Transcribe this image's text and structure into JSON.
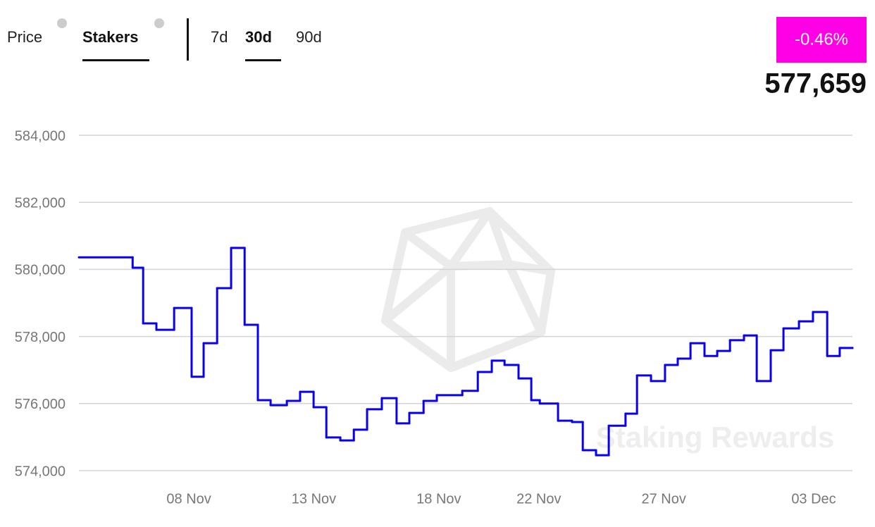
{
  "header": {
    "tabs": [
      "Price",
      "Stakers"
    ],
    "periods": [
      "7d",
      "30d",
      "90d"
    ],
    "change": "-0.46%",
    "current": "577,659"
  },
  "chart_data": {
    "type": "step",
    "color": "#0a00f0",
    "watermark": "Staking Rewards",
    "x": [
      3.6,
      5.75,
      6.17,
      6.7,
      7.41,
      8.11,
      8.59,
      9.13,
      9.69,
      10.23,
      10.76,
      11.27,
      11.92,
      12.45,
      12.99,
      13.5,
      14.06,
      14.6,
      15.13,
      15.72,
      16.31,
      16.82,
      17.39,
      17.92,
      18.94,
      19.56,
      20.12,
      20.63,
      21.19,
      21.7,
      22.04,
      22.77,
      23.33,
      23.76,
      24.29,
      24.8,
      25.47,
      25.93,
      26.49,
      27.05,
      27.56,
      28.07,
      28.63,
      29.14,
      29.65,
      30.21,
      30.72,
      31.28,
      31.79,
      32.41,
      32.97,
      33.54,
      34.04,
      34.55
    ],
    "values": [
      580360,
      580050,
      578390,
      578200,
      578850,
      576800,
      577800,
      579440,
      580640,
      578350,
      576100,
      575950,
      576080,
      576350,
      575890,
      574990,
      574900,
      575220,
      575830,
      576160,
      575410,
      575720,
      576080,
      576250,
      576380,
      576940,
      577280,
      577150,
      576750,
      576100,
      576000,
      575490,
      575450,
      574610,
      574460,
      575340,
      575700,
      576840,
      576670,
      577150,
      577340,
      577800,
      577420,
      577570,
      577890,
      578030,
      576670,
      577590,
      578240,
      578450,
      578730,
      577420,
      577659,
      577659
    ],
    "xlim": [
      3.6,
      34.55
    ],
    "xticks": [
      {
        "value": 8,
        "label": "08 Nov"
      },
      {
        "value": 13,
        "label": "13 Nov"
      },
      {
        "value": 18,
        "label": "18 Nov"
      },
      {
        "value": 22,
        "label": "22 Nov"
      },
      {
        "value": 27,
        "label": "27 Nov"
      },
      {
        "value": 33,
        "label": "03 Dec"
      }
    ],
    "ylim": [
      574000,
      584000
    ],
    "yticks": [
      {
        "value": 574000,
        "label": "574,000"
      },
      {
        "value": 576000,
        "label": "576,000"
      },
      {
        "value": 578000,
        "label": "578,000"
      },
      {
        "value": 580000,
        "label": "580,000"
      },
      {
        "value": 582000,
        "label": "582,000"
      },
      {
        "value": 584000,
        "label": "584,000"
      }
    ],
    "grid": true
  }
}
